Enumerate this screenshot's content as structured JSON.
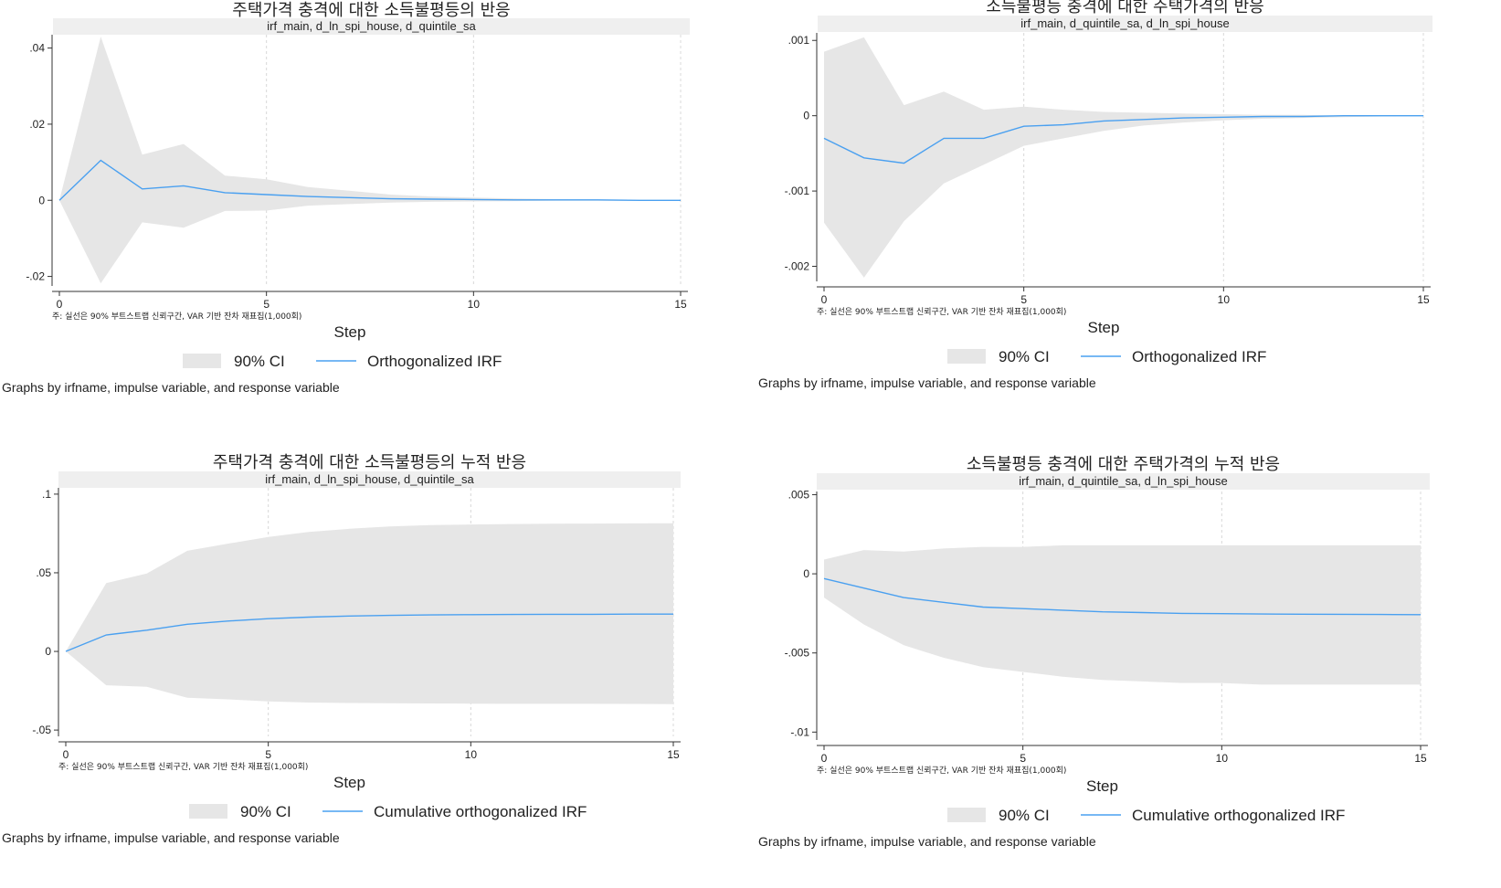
{
  "chart_data": [
    {
      "type": "line",
      "title": "주택가격 충격에 대한 소득불평등의 반응",
      "subtitle": "irf_main, d_ln_spi_house, d_quintile_sa",
      "xlabel": "Step",
      "note": "주: 실선은 90% 부트스트랩 신뢰구간, VAR 기반 잔차 재표집(1,000회)",
      "xticks": [
        "0",
        "5",
        "10",
        "15"
      ],
      "yticks": [
        ".04",
        ".02",
        "0",
        "-.02"
      ],
      "ytick_values": [
        0.04,
        0.02,
        0,
        -0.02
      ],
      "xlim": [
        0,
        15
      ],
      "ylim": [
        -0.0225,
        0.0435
      ],
      "x": [
        0,
        1,
        2,
        3,
        4,
        5,
        6,
        7,
        8,
        9,
        10,
        11,
        12,
        13,
        14,
        15
      ],
      "series": [
        {
          "name": "Orthogonalized IRF",
          "values": [
            0,
            0.0105,
            0.003,
            0.0038,
            0.002,
            0.0015,
            0.001,
            0.0007,
            0.0004,
            0.0003,
            0.0002,
            0.0001,
            0.0001,
            0.0001,
            0.0,
            0.0
          ]
        }
      ],
      "ci_lower": [
        0,
        -0.0218,
        -0.0058,
        -0.0072,
        -0.0028,
        -0.0027,
        -0.0014,
        -0.001,
        -0.0006,
        -0.0004,
        -0.0003,
        -0.0002,
        -0.0001,
        -0.0001,
        -0.0001,
        0.0
      ],
      "ci_upper": [
        0,
        0.043,
        0.012,
        0.0148,
        0.0065,
        0.0055,
        0.0035,
        0.0025,
        0.0015,
        0.001,
        0.0007,
        0.0005,
        0.0003,
        0.0002,
        0.0001,
        0.0001
      ],
      "legend": [
        "90% CI",
        "Orthogonalized IRF"
      ],
      "legend_position": "bottom",
      "byline": "Graphs by irfname, impulse variable, and response variable"
    },
    {
      "type": "line",
      "title": "소득불평등 충격에 대한 주택가격의 반응",
      "subtitle": "irf_main, d_quintile_sa, d_ln_spi_house",
      "xlabel": "Step",
      "note": "주: 실선은 90% 부트스트랩 신뢰구간, VAR 기반 잔차 재표집(1,000회)",
      "xticks": [
        "0",
        "5",
        "10",
        "15"
      ],
      "yticks": [
        ".001",
        "0",
        "-.001",
        "-.002"
      ],
      "ytick_values": [
        0.001,
        0,
        -0.001,
        -0.002
      ],
      "xlim": [
        0,
        15
      ],
      "ylim": [
        -0.0022,
        0.0011
      ],
      "x": [
        0,
        1,
        2,
        3,
        4,
        5,
        6,
        7,
        8,
        9,
        10,
        11,
        12,
        13,
        14,
        15
      ],
      "series": [
        {
          "name": "Orthogonalized IRF",
          "values": [
            -0.0003,
            -0.00056,
            -0.00063,
            -0.0003,
            -0.0003,
            -0.00014,
            -0.00012,
            -7e-05,
            -5e-05,
            -3e-05,
            -2e-05,
            -1e-05,
            -1e-05,
            0.0,
            0.0,
            0.0
          ]
        }
      ],
      "ci_lower": [
        -0.00142,
        -0.00215,
        -0.0014,
        -0.0009,
        -0.00065,
        -0.0004,
        -0.0003,
        -0.0002,
        -0.00013,
        -9e-05,
        -6e-05,
        -4e-05,
        -3e-05,
        -2e-05,
        -1e-05,
        0.0
      ],
      "ci_upper": [
        0.00085,
        0.00104,
        0.00014,
        0.00032,
        8e-05,
        0.00012,
        8e-05,
        5e-05,
        4e-05,
        3e-05,
        2e-05,
        1e-05,
        1e-05,
        0.0,
        0.0,
        0.0
      ],
      "legend": [
        "90% CI",
        "Orthogonalized IRF"
      ],
      "legend_position": "bottom",
      "byline": "Graphs by irfname, impulse variable, and response variable"
    },
    {
      "type": "line",
      "title": "주택가격 충격에 대한 소득불평등의 누적 반응",
      "subtitle": "irf_main, d_ln_spi_house, d_quintile_sa",
      "xlabel": "Step",
      "note": "주: 실선은 90% 부트스트랩 신뢰구간, VAR 기반 잔차 재표집(1,000회)",
      "xticks": [
        "0",
        "5",
        "10",
        "15"
      ],
      "yticks": [
        ".1",
        ".05",
        "0",
        "-.05"
      ],
      "ytick_values": [
        0.1,
        0.05,
        0,
        -0.05
      ],
      "xlim": [
        0,
        15
      ],
      "ylim": [
        -0.054,
        0.104
      ],
      "x": [
        0,
        1,
        2,
        3,
        4,
        5,
        6,
        7,
        8,
        9,
        10,
        11,
        12,
        13,
        14,
        15
      ],
      "series": [
        {
          "name": "Cumulative orthogonalized IRF",
          "values": [
            0,
            0.0105,
            0.0135,
            0.0173,
            0.0193,
            0.0208,
            0.0218,
            0.0225,
            0.0229,
            0.0232,
            0.0234,
            0.0235,
            0.0236,
            0.0236,
            0.0237,
            0.0237
          ]
        }
      ],
      "ci_lower": [
        0,
        -0.0215,
        -0.0225,
        -0.0295,
        -0.0305,
        -0.0318,
        -0.0325,
        -0.0328,
        -0.033,
        -0.0331,
        -0.0332,
        -0.0333,
        -0.0333,
        -0.0333,
        -0.0334,
        -0.0335
      ],
      "ci_upper": [
        0,
        0.0435,
        0.0495,
        0.064,
        0.0685,
        0.0728,
        0.076,
        0.078,
        0.0795,
        0.0803,
        0.0807,
        0.081,
        0.0812,
        0.0813,
        0.0814,
        0.0815
      ],
      "legend": [
        "90% CI",
        "Cumulative orthogonalized IRF"
      ],
      "legend_position": "bottom",
      "byline": "Graphs by irfname, impulse variable, and response variable"
    },
    {
      "type": "line",
      "title": "소득불평등 충격에 대한 주택가격의 누적 반응",
      "subtitle": "irf_main, d_quintile_sa, d_ln_spi_house",
      "xlabel": "Step",
      "note": "주: 실선은 90% 부트스트랩 신뢰구간, VAR 기반 잔차 재표집(1,000회)",
      "xticks": [
        "0",
        "5",
        "10",
        "15"
      ],
      "yticks": [
        ".005",
        "0",
        "-.005",
        "-.01"
      ],
      "ytick_values": [
        0.005,
        0,
        -0.005,
        -0.01
      ],
      "xlim": [
        0,
        15
      ],
      "ylim": [
        -0.0105,
        0.0052
      ],
      "x": [
        0,
        1,
        2,
        3,
        4,
        5,
        6,
        7,
        8,
        9,
        10,
        11,
        12,
        13,
        14,
        15
      ],
      "series": [
        {
          "name": "Cumulative orthogonalized IRF",
          "values": [
            -0.0003,
            -0.0009,
            -0.0015,
            -0.0018,
            -0.0021,
            -0.0022,
            -0.0023,
            -0.0024,
            -0.00245,
            -0.0025,
            -0.00252,
            -0.00254,
            -0.00255,
            -0.00256,
            -0.00257,
            -0.00258
          ]
        }
      ],
      "ci_lower": [
        -0.0015,
        -0.0032,
        -0.0045,
        -0.0053,
        -0.0059,
        -0.0062,
        -0.0065,
        -0.0067,
        -0.0068,
        -0.0069,
        -0.0069,
        -0.007,
        -0.007,
        -0.007,
        -0.007,
        -0.007
      ],
      "ci_upper": [
        0.0009,
        0.0015,
        0.0014,
        0.0016,
        0.0017,
        0.0017,
        0.0018,
        0.0018,
        0.0018,
        0.0018,
        0.0018,
        0.0018,
        0.0018,
        0.0018,
        0.0018,
        0.0018
      ],
      "legend": [
        "90% CI",
        "Cumulative orthogonalized IRF"
      ],
      "legend_position": "bottom",
      "byline": "Graphs by irfname, impulse variable, and response variable"
    }
  ],
  "colors": {
    "ci_fill": "#e6e6e6",
    "line": "#4aa0f0",
    "title_band": "#efefef",
    "axis": "#333333",
    "grid": "#d8d8d8"
  }
}
